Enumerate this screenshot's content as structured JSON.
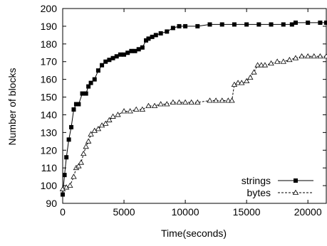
{
  "chart_data": {
    "type": "line",
    "xlabel": "Time(seconds)",
    "ylabel": "Number of blocks",
    "xlim": [
      0,
      21500
    ],
    "ylim": [
      90,
      200
    ],
    "xticks": [
      0,
      5000,
      10000,
      15000,
      20000
    ],
    "yticks": [
      90,
      100,
      110,
      120,
      130,
      140,
      150,
      160,
      170,
      180,
      190,
      200
    ],
    "grid": false,
    "legend_position": "bottom-right",
    "series": [
      {
        "name": "strings",
        "marker": "filled-square",
        "line_style": "solid",
        "x": [
          0,
          150,
          300,
          500,
          700,
          900,
          1100,
          1300,
          1600,
          1900,
          2100,
          2300,
          2600,
          2900,
          3200,
          3500,
          3800,
          4100,
          4400,
          4700,
          5000,
          5300,
          5600,
          5900,
          6200,
          6500,
          6800,
          7000,
          7300,
          7600,
          8000,
          8500,
          9000,
          9500,
          10000,
          11000,
          12000,
          13000,
          14000,
          15000,
          16000,
          17000,
          18000,
          18700,
          19000,
          20000,
          21000,
          21500
        ],
        "y": [
          95,
          106,
          116,
          126,
          133,
          143,
          146,
          146,
          152,
          152,
          156,
          158,
          160,
          165,
          168,
          170,
          171,
          172,
          173,
          174,
          174,
          175,
          176,
          176,
          177,
          178,
          182,
          183,
          184,
          185,
          186,
          187,
          189,
          190,
          190,
          190,
          191,
          191,
          191,
          191,
          191,
          191,
          191,
          191,
          192,
          192,
          192,
          192
        ]
      },
      {
        "name": "bytes",
        "marker": "open-triangle",
        "line_style": "dashed",
        "x": [
          0,
          300,
          600,
          900,
          1100,
          1300,
          1500,
          1700,
          1900,
          2100,
          2300,
          2600,
          2900,
          3200,
          3500,
          3800,
          4100,
          4500,
          5000,
          5500,
          6000,
          6500,
          7000,
          7500,
          8000,
          8500,
          9000,
          9500,
          10000,
          10500,
          11000,
          12000,
          12500,
          13000,
          13500,
          13800,
          14000,
          14300,
          14600,
          15000,
          15300,
          15600,
          15900,
          16200,
          16500,
          17000,
          17500,
          18000,
          18500,
          19000,
          19500,
          20000,
          20500,
          21000,
          21500
        ],
        "y": [
          98,
          99,
          100,
          105,
          110,
          111,
          113,
          118,
          122,
          125,
          129,
          131,
          132,
          134,
          135,
          137,
          139,
          140,
          142,
          142,
          143,
          143,
          145,
          145,
          146,
          146,
          147,
          147,
          147,
          147,
          147,
          148,
          148,
          148,
          148,
          148,
          157,
          158,
          158,
          159,
          161,
          164,
          168,
          168,
          168,
          169,
          170,
          170,
          171,
          172,
          173,
          173,
          173,
          173,
          173
        ]
      }
    ]
  }
}
